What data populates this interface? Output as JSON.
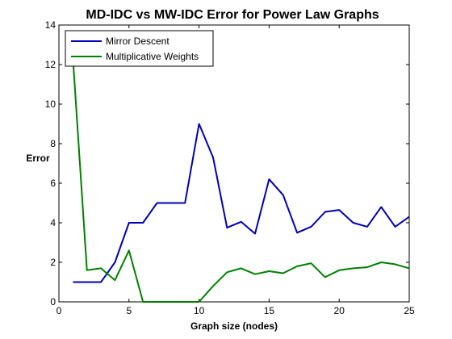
{
  "chart_data": {
    "type": "line",
    "title": "MD-IDC vs MW-IDC Error for Power Law Graphs",
    "xlabel": "Graph size (nodes)",
    "ylabel": "Error",
    "xlim": [
      0,
      25
    ],
    "ylim": [
      0,
      14
    ],
    "xticks": [
      0,
      5,
      10,
      15,
      20,
      25
    ],
    "yticks": [
      0,
      2,
      4,
      6,
      8,
      10,
      12,
      14
    ],
    "grid": false,
    "legend_position": "top-left",
    "x": [
      1,
      2,
      3,
      4,
      5,
      6,
      7,
      8,
      9,
      10,
      11,
      12,
      13,
      14,
      15,
      16,
      17,
      18,
      19,
      20,
      21,
      22,
      23,
      24,
      25
    ],
    "series": [
      {
        "name": "Mirror Descent",
        "color": "#0000b4",
        "values": [
          1.0,
          1.0,
          1.0,
          2.0,
          4.0,
          4.0,
          5.0,
          5.0,
          5.0,
          9.0,
          7.3,
          3.75,
          4.05,
          3.45,
          6.2,
          5.4,
          3.5,
          3.8,
          4.55,
          4.65,
          4.0,
          3.8,
          4.8,
          3.8,
          4.3
        ]
      },
      {
        "name": "Multiplicative Weights",
        "color": "#008000",
        "values": [
          12.3,
          1.6,
          1.7,
          1.1,
          2.6,
          0.0,
          0.0,
          0.0,
          0.0,
          0.0,
          0.8,
          1.5,
          1.7,
          1.4,
          1.55,
          1.45,
          1.8,
          1.95,
          1.25,
          1.6,
          1.7,
          1.75,
          2.0,
          1.9,
          1.7
        ]
      }
    ]
  }
}
